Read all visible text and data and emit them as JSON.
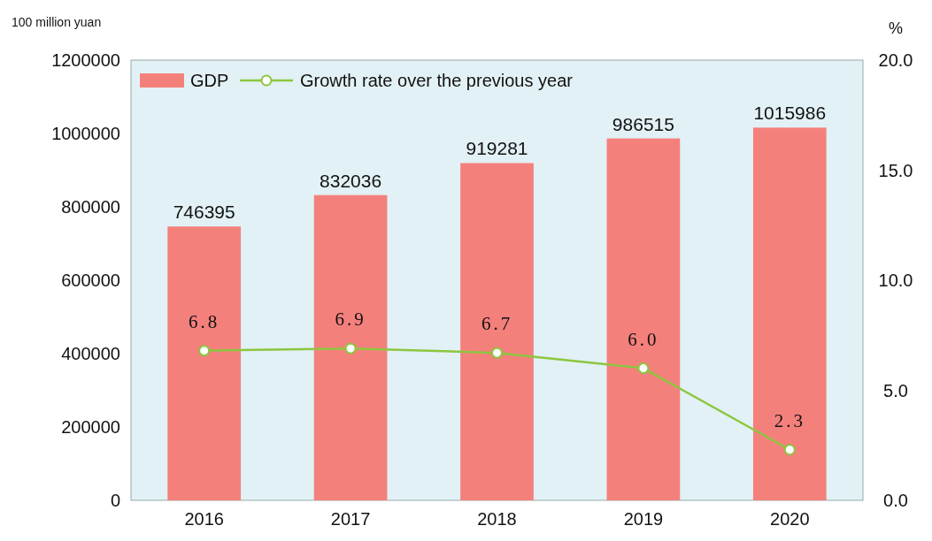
{
  "chart_data": {
    "type": "bar",
    "ylabel": "100 million yuan",
    "y2label": "%",
    "categories": [
      "2016",
      "2017",
      "2018",
      "2019",
      "2020"
    ],
    "series": [
      {
        "name": "GDP",
        "color": "#f4807c",
        "values": [
          746395,
          832036,
          919281,
          986515,
          1015986
        ]
      },
      {
        "name": "Growth rate over the previous year",
        "type": "line",
        "axis": "y2",
        "color": "#8dc63f",
        "values": [
          6.8,
          6.9,
          6.7,
          6.0,
          2.3
        ],
        "value_labels": [
          "6.8",
          "6.9",
          "6.7",
          "6.0",
          "2.3"
        ]
      }
    ],
    "ylim": [
      0,
      1200000
    ],
    "yticks": [
      0,
      200000,
      400000,
      600000,
      800000,
      1000000,
      1200000
    ],
    "y2lim": [
      0,
      20
    ],
    "y2ticks": [
      {
        "value": 0,
        "label": "0.0"
      },
      {
        "value": 5,
        "label": "5.0"
      },
      {
        "value": 10,
        "label": "10.0"
      },
      {
        "value": 15,
        "label": "15.0"
      },
      {
        "value": 20,
        "label": "20.0"
      }
    ],
    "data_labels": true,
    "legend": "top left",
    "marker": "circle",
    "grid": false
  }
}
